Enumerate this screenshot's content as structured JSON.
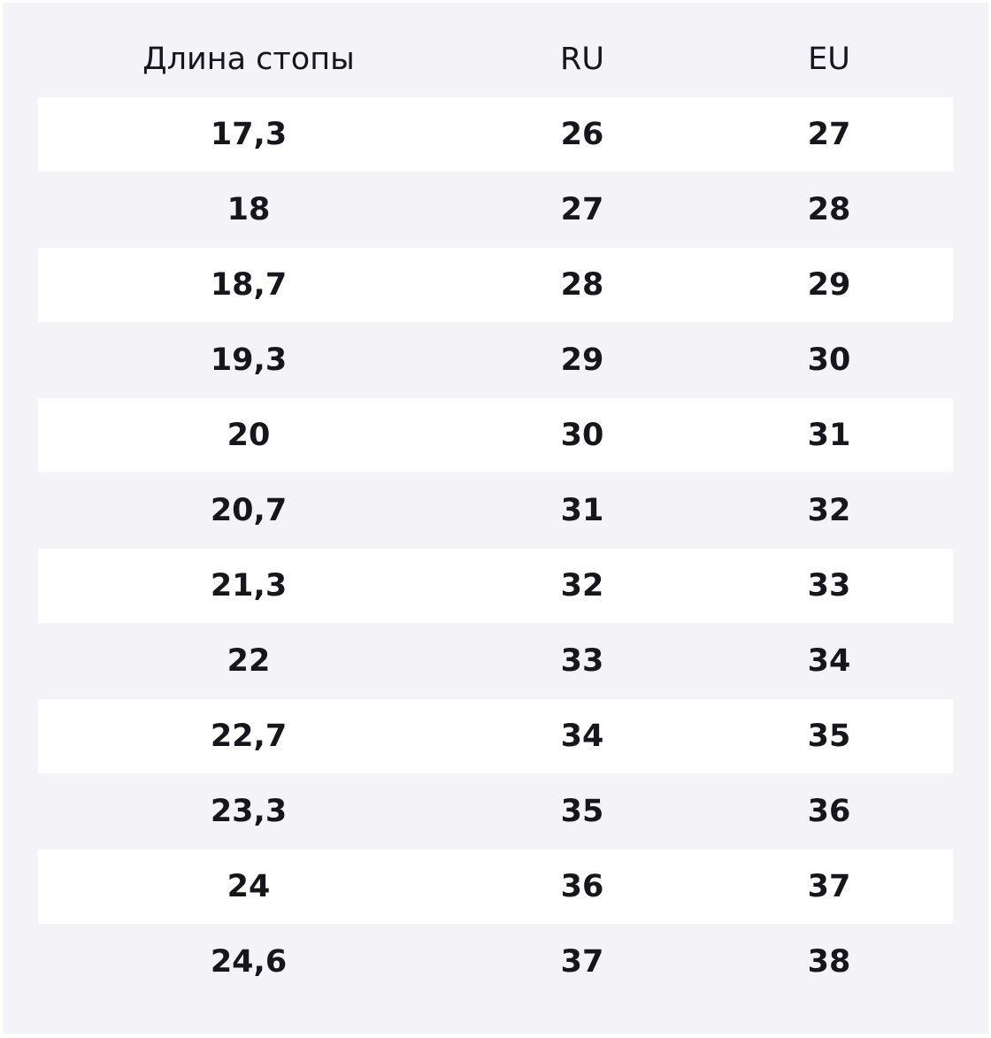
{
  "table": {
    "header": [
      "Длина стопы",
      "RU",
      "EU"
    ],
    "rows": [
      [
        "17,3",
        "26",
        "27"
      ],
      [
        "18",
        "27",
        "28"
      ],
      [
        "18,7",
        "28",
        "29"
      ],
      [
        "19,3",
        "29",
        "30"
      ],
      [
        "20",
        "30",
        "31"
      ],
      [
        "20,7",
        "31",
        "32"
      ],
      [
        "21,3",
        "32",
        "33"
      ],
      [
        "22",
        "33",
        "34"
      ],
      [
        "22,7",
        "34",
        "35"
      ],
      [
        "23,3",
        "35",
        "36"
      ],
      [
        "24",
        "36",
        "37"
      ],
      [
        "24,6",
        "37",
        "38"
      ]
    ]
  }
}
